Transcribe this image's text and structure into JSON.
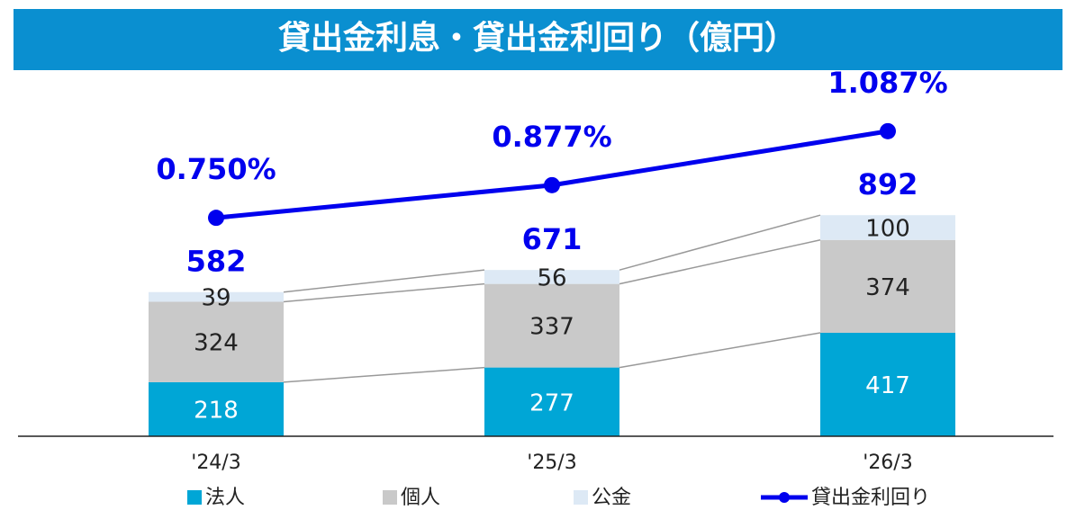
{
  "chart_data": {
    "type": "bar",
    "stacked": true,
    "title": "貸出金利息・貸出金利回り（億円）",
    "categories": [
      "'24/3",
      "'25/3",
      "'26/3"
    ],
    "series": [
      {
        "name": "法人",
        "color": "#00a6d6",
        "values": [
          218,
          277,
          417
        ]
      },
      {
        "name": "個人",
        "color": "#c9c9c9",
        "values": [
          324,
          337,
          374
        ]
      },
      {
        "name": "公金",
        "color": "#dde9f5",
        "values": [
          39,
          56,
          100
        ]
      },
      {
        "name": "貸出金利回り",
        "type": "line",
        "axis": "y2",
        "color": "#0000ee",
        "values": [
          0.75,
          0.877,
          1.087
        ],
        "value_labels": [
          "0.750%",
          "0.877%",
          "1.087%"
        ]
      }
    ],
    "totals": [
      582,
      671,
      892
    ],
    "ylim": [
      0,
      1450
    ],
    "y2lim": [
      -0.1,
      1.3
    ]
  }
}
